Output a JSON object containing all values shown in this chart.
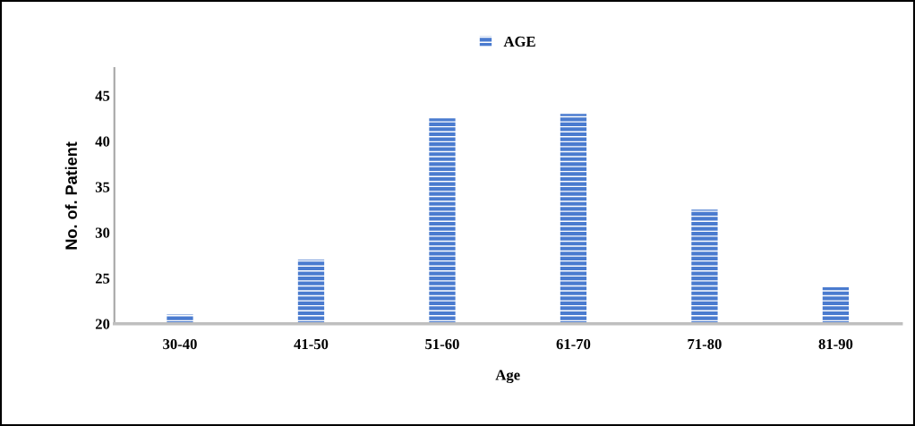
{
  "chart_data": {
    "type": "bar",
    "xlabel": "Age",
    "ylabel": "No. of. Patient",
    "categories": [
      "30-40",
      "41-50",
      "51-60",
      "61-70",
      "71-80",
      "81-90"
    ],
    "series": [
      {
        "name": "AGE",
        "color": "#4a7bcf",
        "values": [
          21,
          27,
          42.5,
          43,
          32.5,
          24
        ]
      }
    ],
    "ylim": [
      20,
      48
    ],
    "yticks": [
      20,
      25,
      30,
      35,
      40,
      45
    ],
    "grid": false,
    "legend": "top"
  }
}
